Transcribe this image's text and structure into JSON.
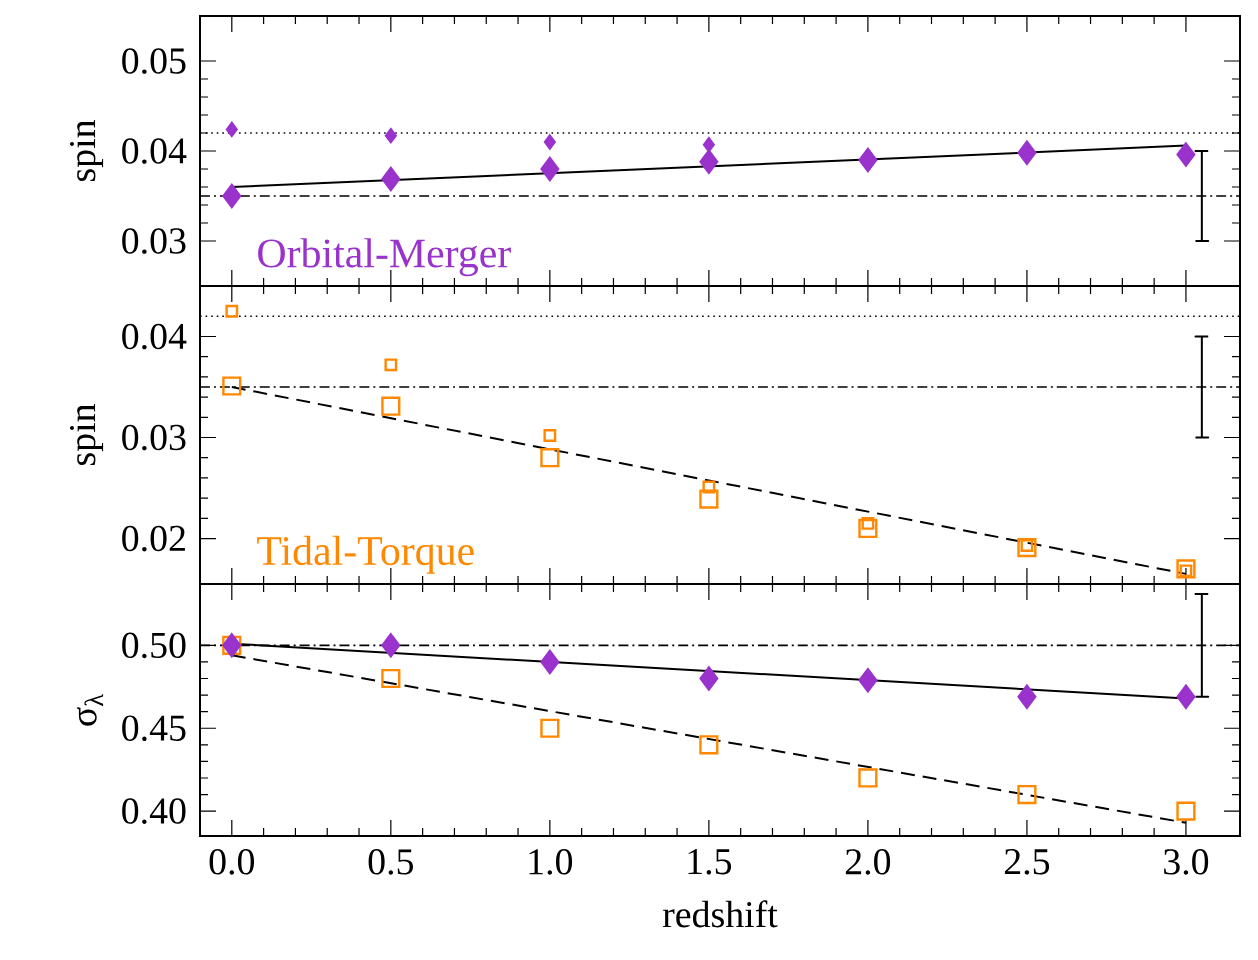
{
  "chart_data": [
    {
      "type": "scatter",
      "ylabel": "spin",
      "xlim": [
        -0.1,
        3.17
      ],
      "ylim": [
        0.025,
        0.055
      ],
      "tick_labels": "y",
      "xticks": [
        0,
        0.5,
        1,
        1.5,
        2,
        2.5,
        3
      ],
      "yticks": [
        0.03,
        0.04,
        0.05
      ],
      "annotations": [
        "Orbital-Merger"
      ],
      "series": [
        {
          "marker": "diamond",
          "color": "#9933cc",
          "x": [
            0,
            0.5,
            1,
            1.5,
            2,
            2.5,
            3
          ],
          "values": [
            0.035,
            0.0369,
            0.038,
            0.0388,
            0.039,
            0.0398,
            0.0396
          ]
        },
        {
          "marker": "diamond",
          "color": "#9933cc",
          "x": [
            0,
            0.5,
            1,
            1.5
          ],
          "values": [
            0.0424,
            0.0417,
            0.041,
            0.0407
          ]
        },
        {
          "type": "line",
          "marker": "none",
          "line_style": "solid",
          "color": "#000000",
          "x": [
            0,
            3
          ],
          "values": [
            0.036,
            0.0406
          ]
        },
        {
          "type": "line",
          "marker": "none",
          "line_style": "solid",
          "color": "#000000",
          "x": [
            3.03,
            3.07,
            3.05,
            3.05,
            3.03,
            3.07
          ],
          "values": [
            0.03,
            0.03,
            0.03,
            0.04,
            0.04,
            0.04
          ]
        }
      ],
      "ref_lines": [
        {
          "axis": "y",
          "value": 0.042,
          "line_style": "dotted"
        },
        {
          "axis": "y",
          "value": 0.035,
          "line_style": "dashdot"
        }
      ]
    },
    {
      "type": "scatter",
      "ylabel": "spin",
      "xlim": [
        -0.1,
        3.17
      ],
      "ylim": [
        0.0155,
        0.045
      ],
      "tick_labels": "y",
      "xticks": [
        0,
        0.5,
        1,
        1.5,
        2,
        2.5,
        3
      ],
      "yticks": [
        0.02,
        0.03,
        0.04
      ],
      "annotations": [
        "Tidal-Torque"
      ],
      "series": [
        {
          "marker": "square",
          "color": "#ff8800",
          "x": [
            0,
            0.5,
            1,
            1.5,
            2,
            2.5,
            3
          ],
          "values": [
            0.0351,
            0.0331,
            0.028,
            0.0239,
            0.021,
            0.0191,
            0.017
          ]
        },
        {
          "marker": "square",
          "color": "#ff8800",
          "x": [
            0,
            0.5,
            1,
            1.5,
            2,
            2.5,
            3
          ],
          "values": [
            0.0425,
            0.0372,
            0.0302,
            0.0251,
            0.0215,
            0.0193,
            0.0168
          ]
        },
        {
          "type": "line",
          "marker": "none",
          "line_style": "dashed",
          "color": "#000000",
          "x": [
            0,
            3
          ],
          "values": [
            0.035,
            0.0165
          ]
        },
        {
          "type": "line",
          "marker": "none",
          "line_style": "solid",
          "color": "#000000",
          "x": [
            3.03,
            3.07,
            3.05,
            3.05,
            3.03,
            3.07
          ],
          "values": [
            0.03,
            0.03,
            0.03,
            0.04,
            0.04,
            0.04
          ]
        }
      ],
      "ref_lines": [
        {
          "axis": "y",
          "value": 0.042,
          "line_style": "dotted"
        },
        {
          "axis": "y",
          "value": 0.035,
          "line_style": "dashdot"
        }
      ]
    },
    {
      "type": "scatter",
      "ylabel": "σ$_{λ}$",
      "xlabel": "redshift",
      "xlim": [
        -0.1,
        3.17
      ],
      "ylim": [
        0.385,
        0.537
      ],
      "xticks": [
        {
          "value": 0,
          "label": "0.0"
        },
        {
          "value": 0.5,
          "label": "0.5"
        },
        {
          "value": 1,
          "label": "1.0"
        },
        {
          "value": 1.5,
          "label": "1.5"
        },
        {
          "value": 2,
          "label": "2.0"
        },
        {
          "value": 2.5,
          "label": "2.5"
        },
        {
          "value": 3,
          "label": "3.0"
        }
      ],
      "yticks": [
        {
          "value": 0.4,
          "label": "0.40"
        },
        {
          "value": 0.45,
          "label": "0.45"
        },
        {
          "value": 0.5,
          "label": "0.50"
        }
      ],
      "series": [
        {
          "marker": "square",
          "color": "#ff8800",
          "x": [
            0,
            0.5,
            1,
            1.5,
            2,
            2.5,
            3
          ],
          "values": [
            0.5,
            0.48,
            0.45,
            0.44,
            0.42,
            0.41,
            0.4
          ]
        },
        {
          "marker": "diamond",
          "color": "#9933cc",
          "x": [
            0,
            0.5,
            1,
            1.5,
            2,
            2.5,
            3
          ],
          "values": [
            0.5,
            0.5,
            0.49,
            0.48,
            0.479,
            0.469,
            0.469
          ]
        },
        {
          "type": "line",
          "marker": "none",
          "line_style": "solid",
          "color": "#000000",
          "x": [
            0,
            3
          ],
          "values": [
            0.501,
            0.468
          ]
        },
        {
          "type": "line",
          "marker": "none",
          "line_style": "dashed",
          "color": "#000000",
          "x": [
            0,
            3
          ],
          "values": [
            0.494,
            0.393
          ]
        },
        {
          "type": "line",
          "marker": "none",
          "line_style": "solid",
          "color": "#000000",
          "x": [
            3.03,
            3.07,
            3.05,
            3.05,
            3.03,
            3.07
          ],
          "values": [
            0.469,
            0.469,
            0.469,
            0.531,
            0.531,
            0.531
          ]
        }
      ],
      "ref_lines": [
        {
          "axis": "y",
          "value": 0.5,
          "line_style": "dashdot"
        }
      ]
    }
  ]
}
